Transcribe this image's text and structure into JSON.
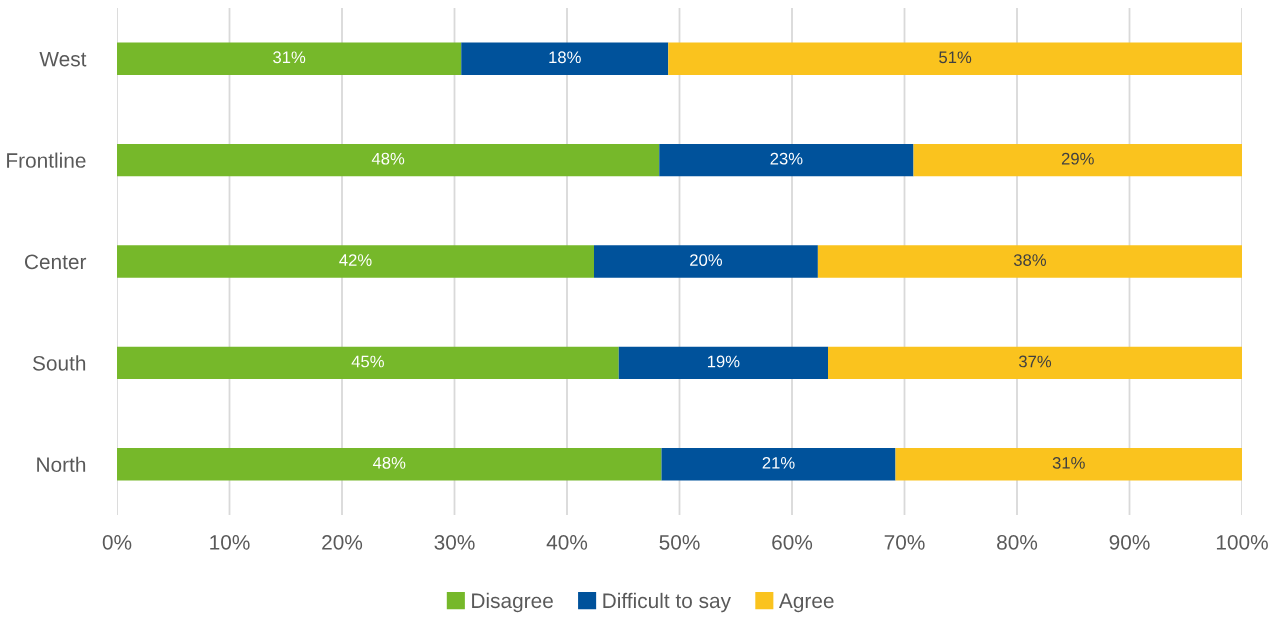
{
  "chart_data": {
    "type": "bar",
    "orientation": "horizontal",
    "stacked": true,
    "categories": [
      "West",
      "Frontline",
      "Center",
      "South",
      "North"
    ],
    "series": [
      {
        "name": "Disagree",
        "color": "#76b82a",
        "values": [
          30.6,
          48.2,
          42.4,
          44.6,
          48.4
        ],
        "value_labels": [
          "31%",
          "48%",
          "42%",
          "45%",
          "48%"
        ]
      },
      {
        "name": "Difficult to say",
        "color": "#00529b",
        "values": [
          18.4,
          22.6,
          19.9,
          18.6,
          20.8
        ],
        "value_labels": [
          "18%",
          "23%",
          "20%",
          "19%",
          "21%"
        ]
      },
      {
        "name": "Agree",
        "color": "#fac31e",
        "values": [
          51.0,
          29.2,
          37.7,
          36.8,
          30.8
        ],
        "value_labels": [
          "51%",
          "29%",
          "38%",
          "37%",
          "31%"
        ]
      }
    ],
    "xlim": [
      0,
      100
    ],
    "xticks": [
      {
        "value": 0,
        "label": "0%"
      },
      {
        "value": 10,
        "label": "10%"
      },
      {
        "value": 20,
        "label": "20%"
      },
      {
        "value": 30,
        "label": "30%"
      },
      {
        "value": 40,
        "label": "40%"
      },
      {
        "value": 50,
        "label": "50%"
      },
      {
        "value": 60,
        "label": "60%"
      },
      {
        "value": 70,
        "label": "70%"
      },
      {
        "value": 80,
        "label": "80%"
      },
      {
        "value": 90,
        "label": "90%"
      },
      {
        "value": 100,
        "label": "100%"
      }
    ],
    "grid": "x",
    "legend": "bottom"
  }
}
